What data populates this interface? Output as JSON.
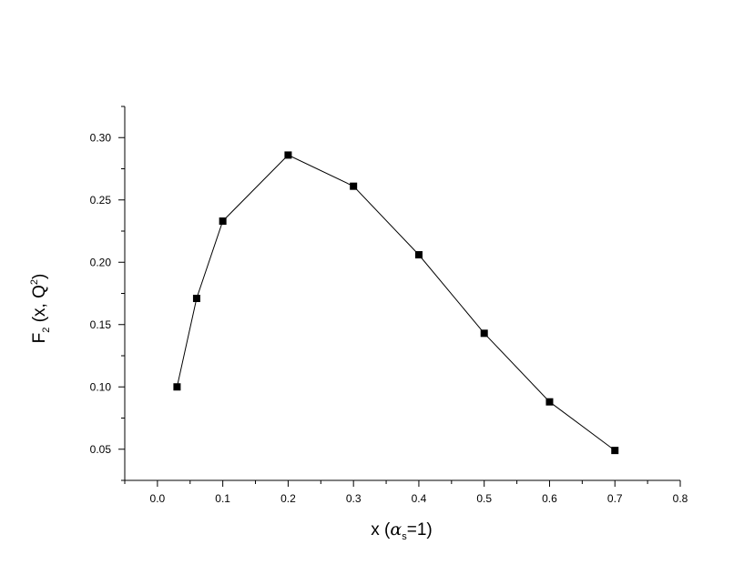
{
  "chart_data": {
    "type": "line",
    "title": "",
    "xlabel": {
      "main": "x  (",
      "symbol": "α",
      "subscript": "s",
      "rest": "=1)"
    },
    "ylabel": {
      "main": "F",
      "subscript": "2",
      "middle": " (x, Q",
      "superscript": "2",
      "end": ")"
    },
    "xlim": [
      -0.05,
      0.8
    ],
    "ylim": [
      0.025,
      0.325
    ],
    "x_ticks": [
      "0.0",
      "0.1",
      "0.2",
      "0.3",
      "0.4",
      "0.5",
      "0.6",
      "0.7",
      "0.8"
    ],
    "y_ticks": [
      "0.05",
      "0.10",
      "0.15",
      "0.20",
      "0.25",
      "0.30"
    ],
    "grid": false,
    "legend": "none",
    "marker": "square",
    "line_color": "#000000",
    "series": [
      {
        "x": [
          0.03,
          0.06,
          0.1,
          0.2,
          0.3,
          0.4,
          0.5,
          0.6,
          0.7
        ],
        "y": [
          0.1,
          0.171,
          0.233,
          0.286,
          0.261,
          0.206,
          0.143,
          0.088,
          0.049
        ]
      }
    ]
  }
}
